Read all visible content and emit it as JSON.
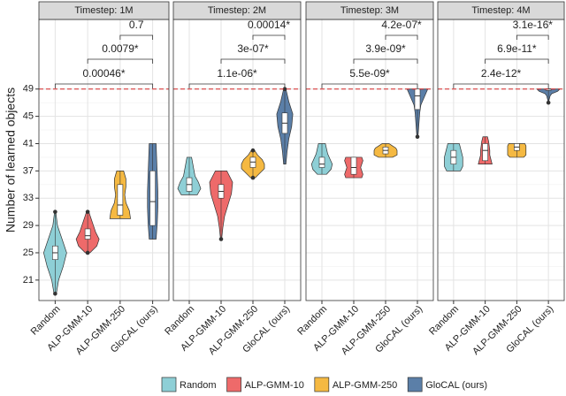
{
  "chart_data": [
    {
      "type": "violin",
      "title": "Timestep: 1M",
      "ylabel": "Number of learned objects",
      "categories": [
        "Random",
        "ALP-GMM-10",
        "ALP-GMM-250",
        "GloCAL (ours)"
      ],
      "groups": [
        {
          "color": "#8ecfd6",
          "min": 19,
          "q1": 24,
          "median": 25,
          "q3": 26,
          "max": 31,
          "density": [
            0.1,
            0.3,
            0.7,
            1.0,
            0.6,
            0.2,
            0.05
          ],
          "outliers": [
            19,
            31
          ]
        },
        {
          "color": "#ee6a6a",
          "min": 25,
          "q1": 27,
          "median": 27.5,
          "q3": 28.5,
          "max": 31,
          "density": [
            0.2,
            0.8,
            1.0,
            0.7,
            0.5,
            0.3,
            0.1
          ],
          "outliers": [
            25,
            31
          ]
        },
        {
          "color": "#f5b942",
          "min": 30,
          "q1": 30.5,
          "median": 32,
          "q3": 35,
          "max": 37,
          "density": [
            0.9,
            0.8,
            0.5,
            0.4,
            0.5,
            0.5,
            0.3
          ],
          "outliers": []
        },
        {
          "color": "#5b7fa8",
          "min": 27,
          "q1": 29,
          "median": 32.5,
          "q3": 37,
          "max": 41,
          "density": [
            0.3,
            0.4,
            0.45,
            0.45,
            0.4,
            0.35,
            0.3
          ],
          "outliers": []
        }
      ],
      "comparisons": [
        {
          "pair": [
            "Random",
            "GloCAL (ours)"
          ],
          "label": "0.00046*"
        },
        {
          "pair": [
            "ALP-GMM-10",
            "GloCAL (ours)"
          ],
          "label": "0.0079*"
        },
        {
          "pair": [
            "ALP-GMM-250",
            "GloCAL (ours)"
          ],
          "label": "0.7"
        }
      ],
      "ylim": [
        18,
        59.2
      ],
      "yticks": [
        21,
        25,
        29,
        33,
        37,
        41,
        45,
        49
      ],
      "grid": true,
      "reference_line": 49
    },
    {
      "type": "violin",
      "title": "Timestep: 2M",
      "categories": [
        "Random",
        "ALP-GMM-10",
        "ALP-GMM-250",
        "GloCAL (ours)"
      ],
      "groups": [
        {
          "color": "#8ecfd6",
          "min": 33.5,
          "q1": 34,
          "median": 35,
          "q3": 36,
          "max": 39,
          "density": [
            0.7,
            1.0,
            0.8,
            0.5,
            0.4,
            0.3,
            0.2
          ],
          "outliers": []
        },
        {
          "color": "#ee6a6a",
          "min": 27,
          "q1": 33,
          "median": 34,
          "q3": 35,
          "max": 37,
          "density": [
            0.05,
            0.15,
            0.3,
            0.6,
            0.9,
            1.0,
            0.5
          ],
          "outliers": [
            27
          ]
        },
        {
          "color": "#f5b942",
          "min": 36,
          "q1": 37.5,
          "median": 38.3,
          "q3": 39,
          "max": 40,
          "density": [
            0.2,
            0.6,
            1.0,
            1.0,
            0.8,
            0.4,
            0.15
          ],
          "outliers": [
            36,
            40
          ]
        },
        {
          "color": "#5b7fa8",
          "min": 38,
          "q1": 42.5,
          "median": 44,
          "q3": 45.5,
          "max": 49,
          "density": [
            0.1,
            0.2,
            0.35,
            0.6,
            0.7,
            0.35,
            0.1
          ],
          "outliers": [
            49
          ]
        }
      ],
      "comparisons": [
        {
          "pair": [
            "Random",
            "GloCAL (ours)"
          ],
          "label": "1.1e-06*"
        },
        {
          "pair": [
            "ALP-GMM-10",
            "GloCAL (ours)"
          ],
          "label": "3e-07*"
        },
        {
          "pair": [
            "ALP-GMM-250",
            "GloCAL (ours)"
          ],
          "label": "0.00014*"
        }
      ],
      "ylim": [
        18,
        59.2
      ],
      "yticks": [
        21,
        25,
        29,
        33,
        37,
        41,
        45,
        49
      ],
      "grid": true,
      "reference_line": 49
    },
    {
      "type": "violin",
      "title": "Timestep: 3M",
      "categories": [
        "Random",
        "ALP-GMM-10",
        "ALP-GMM-250",
        "GloCAL (ours)"
      ],
      "groups": [
        {
          "color": "#8ecfd6",
          "min": 36.5,
          "q1": 37.5,
          "median": 38,
          "q3": 39,
          "max": 41,
          "density": [
            0.4,
            0.8,
            0.9,
            0.7,
            0.5,
            0.4,
            0.3
          ],
          "outliers": []
        },
        {
          "color": "#ee6a6a",
          "min": 36,
          "q1": 36.5,
          "median": 37.5,
          "q3": 39,
          "max": 39,
          "density": [
            0.7,
            0.8,
            0.7,
            0.6,
            0.7,
            0.8,
            0.7
          ],
          "outliers": []
        },
        {
          "color": "#f5b942",
          "min": 39,
          "q1": 39.5,
          "median": 40,
          "q3": 40.5,
          "max": 41,
          "density": [
            0.6,
            1.0,
            1.0,
            1.0,
            0.9,
            0.6,
            0.3
          ],
          "outliers": []
        },
        {
          "color": "#5b7fa8",
          "min": 42,
          "q1": 46,
          "median": 48,
          "q3": 49,
          "max": 49,
          "density": [
            0.05,
            0.1,
            0.15,
            0.2,
            0.3,
            0.6,
            0.9
          ],
          "outliers": [
            42
          ]
        }
      ],
      "comparisons": [
        {
          "pair": [
            "Random",
            "GloCAL (ours)"
          ],
          "label": "5.5e-09*"
        },
        {
          "pair": [
            "ALP-GMM-10",
            "GloCAL (ours)"
          ],
          "label": "3.9e-09*"
        },
        {
          "pair": [
            "ALP-GMM-250",
            "GloCAL (ours)"
          ],
          "label": "4.2e-07*"
        }
      ],
      "ylim": [
        18,
        59.2
      ],
      "yticks": [
        21,
        25,
        29,
        33,
        37,
        41,
        45,
        49
      ],
      "grid": true,
      "reference_line": 49
    },
    {
      "type": "violin",
      "title": "Timestep: 4M",
      "categories": [
        "Random",
        "ALP-GMM-10",
        "ALP-GMM-250",
        "GloCAL (ours)"
      ],
      "groups": [
        {
          "color": "#8ecfd6",
          "min": 37,
          "q1": 38,
          "median": 39,
          "q3": 40,
          "max": 41,
          "density": [
            0.6,
            0.8,
            0.8,
            0.8,
            0.7,
            0.6,
            0.5
          ],
          "outliers": []
        },
        {
          "color": "#ee6a6a",
          "min": 38,
          "q1": 38.5,
          "median": 40,
          "q3": 41,
          "max": 42,
          "density": [
            0.6,
            0.5,
            0.4,
            0.4,
            0.35,
            0.3,
            0.2
          ],
          "outliers": []
        },
        {
          "color": "#f5b942",
          "min": 39,
          "q1": 40,
          "median": 40.5,
          "q3": 41,
          "max": 41,
          "density": [
            0.6,
            0.8,
            0.8,
            0.8,
            0.8,
            0.8,
            0.7
          ],
          "outliers": []
        },
        {
          "color": "#5b7fa8",
          "min": 47,
          "q1": 48.8,
          "median": 49,
          "q3": 49,
          "max": 49,
          "density": [
            0.05,
            0.05,
            0.1,
            0.15,
            0.3,
            0.8,
            1.0
          ],
          "outliers": [
            47
          ]
        }
      ],
      "comparisons": [
        {
          "pair": [
            "Random",
            "GloCAL (ours)"
          ],
          "label": "2.4e-12*"
        },
        {
          "pair": [
            "ALP-GMM-10",
            "GloCAL (ours)"
          ],
          "label": "6.9e-11*"
        },
        {
          "pair": [
            "ALP-GMM-250",
            "GloCAL (ours)"
          ],
          "label": "3.1e-16*"
        }
      ],
      "ylim": [
        18,
        59.2
      ],
      "yticks": [
        21,
        25,
        29,
        33,
        37,
        41,
        45,
        49
      ],
      "grid": true,
      "reference_line": 49
    }
  ]
}
